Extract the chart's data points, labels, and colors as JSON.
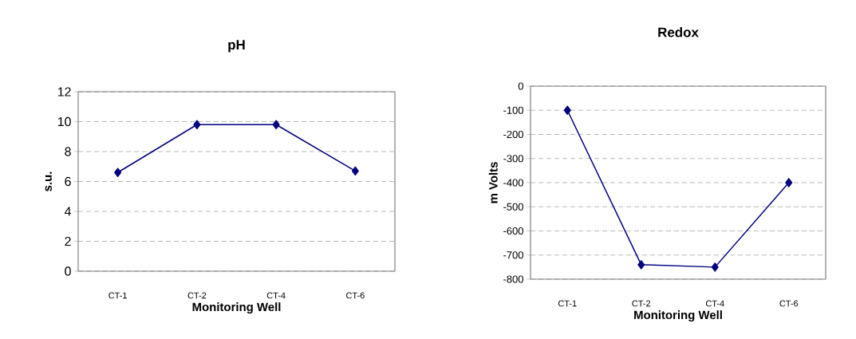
{
  "chart_data": [
    {
      "type": "line",
      "title": "pH",
      "xlabel": "Monitoring Well",
      "ylabel": "s.u.",
      "categories": [
        "CT-1",
        "CT-2",
        "CT-4",
        "CT-6"
      ],
      "values": [
        6.6,
        9.8,
        9.8,
        6.7
      ],
      "color": "#000080",
      "marker": "diamond",
      "line_style": "solid",
      "grid": "y",
      "ylim": [
        0,
        12
      ],
      "yticks": [
        0,
        2,
        4,
        6,
        8,
        10,
        12
      ]
    },
    {
      "type": "line",
      "title": "Redox",
      "xlabel": "Monitoring Well",
      "ylabel": "m Volts",
      "categories": [
        "CT-1",
        "CT-2",
        "CT-4",
        "CT-6"
      ],
      "values": [
        -100,
        -740,
        -750,
        -400
      ],
      "color": "#000080",
      "marker": "diamond",
      "line_style": "solid",
      "grid": "y",
      "ylim": [
        -800,
        0
      ],
      "yticks": [
        0,
        -100,
        -200,
        -300,
        -400,
        -500,
        -600,
        -700,
        -800
      ]
    }
  ]
}
